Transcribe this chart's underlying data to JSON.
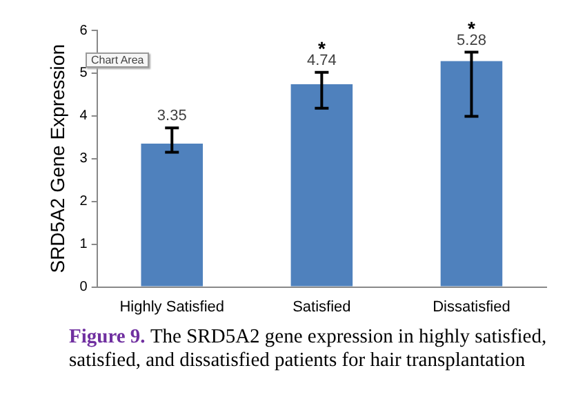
{
  "chart_data": {
    "type": "bar",
    "ylabel": "SRD5A2 Gene Expression",
    "categories": [
      "Highly Satisfied",
      "Satisfied",
      "Dissatisfied"
    ],
    "values": [
      3.35,
      4.74,
      5.28
    ],
    "color": "#4f81bd",
    "errors": [
      [
        3.15,
        3.72
      ],
      [
        4.18,
        5.02
      ],
      [
        3.99,
        5.49
      ]
    ],
    "data_labels": true,
    "ylim": [
      0,
      6
    ],
    "yticks": [
      0,
      1,
      2,
      3,
      4,
      5,
      6
    ],
    "grid": false,
    "legend": false,
    "annotations": [
      "Chart Area",
      "*",
      "*",
      "Figure 9.",
      "The SRD5A2 gene expression in highly satisfied, satisfied, and dissatisfied patients for hair transplantation"
    ]
  }
}
